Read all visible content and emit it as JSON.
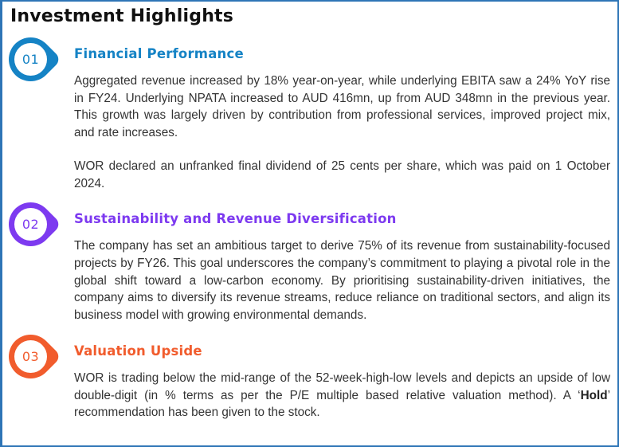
{
  "page": {
    "title": "Investment Highlights"
  },
  "colors": {
    "frame_border": "#2e75b6",
    "blue_accent": "#1583c5",
    "purple_accent": "#7d3af0",
    "orange_accent": "#f15c2d",
    "body_text": "#333333"
  },
  "sections": [
    {
      "number": "01",
      "heading": "Financial Performance",
      "color": "#1583c5",
      "paragraphs": [
        "Aggregated revenue increased by 18% year-on-year, while underlying EBITA saw a 24% YoY rise in FY24. Underlying NPATA increased to AUD 416mn, up from AUD 348mn in the previous year. This growth was largely driven by contribution from professional services, improved project mix, and rate increases.",
        "WOR declared an unfranked final dividend of 25 cents per share, which was paid on 1 October 2024."
      ]
    },
    {
      "number": "02",
      "heading": "Sustainability and Revenue Diversification",
      "color": "#7d3af0",
      "paragraphs": [
        "The company has set an ambitious target to derive 75% of its revenue from sustainability-focused projects by FY26. This goal underscores the company’s commitment to playing a pivotal role in the global shift toward a low-carbon economy. By prioritising sustainability-driven initiatives, the company aims to diversify its revenue streams, reduce reliance on traditional sectors, and align its business model with growing environmental demands."
      ]
    },
    {
      "number": "03",
      "heading": "Valuation Upside",
      "color": "#f15c2d",
      "paragraph_parts": {
        "before": "WOR is trading below the mid-range of the 52-week-high-low levels and depicts an upside of low double-digit (in % terms as per the P/E multiple based relative valuation method). A ‘",
        "bold": "Hold",
        "after": "’ recommendation has been given to the stock."
      }
    }
  ]
}
